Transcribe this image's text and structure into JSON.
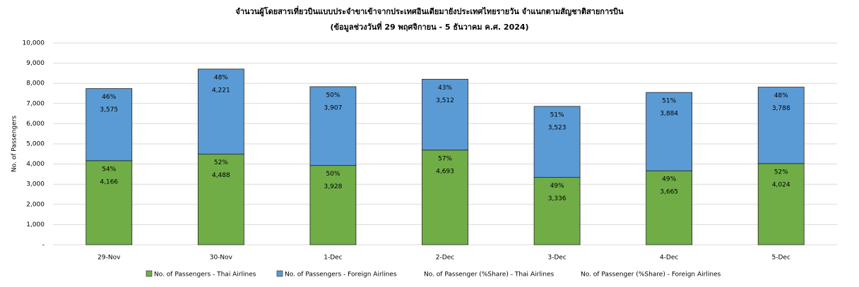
{
  "chart_data": {
    "type": "bar",
    "stacked": true,
    "title": "จำนวนผู้โดยสารเที่ยวบินแบบประจำขาเข้าจากประเทศอินเดียมายังประเทศไทยรายวัน  จำแนกตามสัญชาติสายการบิน",
    "subtitle": "(ข้อมูลช่วงวันที่ 29 พฤศจิกายน - 5 ธันวาคม ค.ศ. 2024)",
    "y_label": "No. of Passengers",
    "categories": [
      "29-Nov",
      "30-Nov",
      "1-Dec",
      "2-Dec",
      "3-Dec",
      "4-Dec",
      "5-Dec"
    ],
    "series": [
      {
        "name": "No. of Passengers - Thai Airlines",
        "color": "#70ad47",
        "values": [
          4166,
          4488,
          3928,
          4693,
          3336,
          3665,
          4024
        ],
        "value_labels": [
          "4,166",
          "4,488",
          "3,928",
          "4,693",
          "3,336",
          "3,665",
          "4,024"
        ]
      },
      {
        "name": "No. of Passengers - Foreign Airlines",
        "color": "#5b9bd5",
        "values": [
          3575,
          4221,
          3907,
          3512,
          3523,
          3884,
          3788
        ],
        "value_labels": [
          "3,575",
          "4,221",
          "3,907",
          "3,512",
          "3,523",
          "3,884",
          "3,788"
        ]
      },
      {
        "name": "No. of Passenger (%Share) - Thai Airlines",
        "values": [
          54,
          52,
          50,
          57,
          49,
          49,
          52
        ],
        "value_labels": [
          "54%",
          "52%",
          "50%",
          "57%",
          "49%",
          "49%",
          "52%"
        ]
      },
      {
        "name": "No. of Passenger (%Share) - Foreign Airlines",
        "values": [
          46,
          48,
          50,
          43,
          51,
          51,
          48
        ],
        "value_labels": [
          "46%",
          "48%",
          "50%",
          "43%",
          "51%",
          "51%",
          "48%"
        ]
      }
    ],
    "ylim": [
      0,
      10000
    ],
    "yticks": [
      {
        "value": 0,
        "label": "-"
      },
      {
        "value": 1000,
        "label": "1,000"
      },
      {
        "value": 2000,
        "label": "2,000"
      },
      {
        "value": 3000,
        "label": "3,000"
      },
      {
        "value": 4000,
        "label": "4,000"
      },
      {
        "value": 5000,
        "label": "5,000"
      },
      {
        "value": 6000,
        "label": "6,000"
      },
      {
        "value": 7000,
        "label": "7,000"
      },
      {
        "value": 8000,
        "label": "8,000"
      },
      {
        "value": 9000,
        "label": "9,000"
      },
      {
        "value": 10000,
        "label": "10,000"
      }
    ],
    "grid": true
  }
}
